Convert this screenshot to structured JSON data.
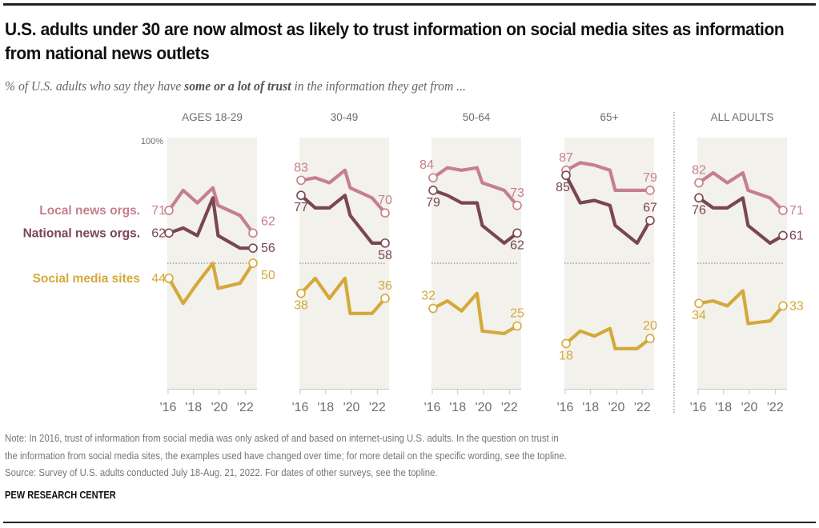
{
  "header": {
    "title": "U.S. adults under 30 are now almost as likely to trust information on social media sites as information from national news outlets",
    "subtitle_pre": "% of U.S. adults who say they have ",
    "subtitle_bold": "some or a lot of trust",
    "subtitle_post": " in the information they get from ..."
  },
  "colors": {
    "local": "#C67F8D",
    "national": "#7A4652",
    "social": "#D4A93A",
    "panel_bg": "#F2F1EC",
    "axis_text": "#6E6E6E"
  },
  "chart_data": {
    "type": "line",
    "title": "U.S. adults under 30 are now almost as likely to trust information on social media sites as information from national news outlets",
    "ylabel": "% with some or a lot of trust",
    "ylim": [
      0,
      100
    ],
    "y_top_label": "100%",
    "reference_line": 50,
    "x_ticks": [
      2016,
      2018,
      2020,
      2022
    ],
    "x_tick_labels": [
      "'16",
      "'18",
      "'20",
      "'22"
    ],
    "x": [
      2016.1,
      2017.2,
      2018.3,
      2019.5,
      2019.9,
      2021.6,
      2022.6
    ],
    "legend": [
      {
        "key": "local",
        "label": "Local news orgs."
      },
      {
        "key": "national",
        "label": "National news orgs."
      },
      {
        "key": "social",
        "label": "Social media sites"
      }
    ],
    "panels": [
      {
        "name": "AGES 18-29",
        "series": [
          {
            "key": "local",
            "name": "Local news orgs.",
            "values": [
              71,
              79,
              74,
              80,
              73,
              69,
              62
            ]
          },
          {
            "key": "national",
            "name": "National news orgs.",
            "values": [
              62,
              64,
              61,
              76,
              61,
              56,
              56
            ]
          },
          {
            "key": "social",
            "name": "Social media sites",
            "values": [
              44,
              34,
              42,
              50,
              40,
              42,
              50
            ]
          }
        ]
      },
      {
        "name": "30-49",
        "series": [
          {
            "key": "local",
            "name": "Local news orgs.",
            "values": [
              83,
              84,
              82,
              87,
              80,
              76,
              70
            ]
          },
          {
            "key": "national",
            "name": "National news orgs.",
            "values": [
              77,
              72,
              72,
              77,
              69,
              58,
              58
            ]
          },
          {
            "key": "social",
            "name": "Social media sites",
            "values": [
              38,
              44,
              36,
              44,
              30,
              30,
              36
            ]
          }
        ]
      },
      {
        "name": "50-64",
        "series": [
          {
            "key": "local",
            "name": "Local news orgs.",
            "values": [
              84,
              88,
              87,
              88,
              82,
              79,
              73
            ]
          },
          {
            "key": "national",
            "name": "National news orgs.",
            "values": [
              79,
              77,
              74,
              74,
              65,
              58,
              62
            ]
          },
          {
            "key": "social",
            "name": "Social media sites",
            "values": [
              32,
              35,
              31,
              38,
              23,
              22,
              25
            ]
          }
        ]
      },
      {
        "name": "65+",
        "series": [
          {
            "key": "local",
            "name": "Local news orgs.",
            "values": [
              87,
              90,
              89,
              87,
              79,
              79,
              79
            ]
          },
          {
            "key": "national",
            "name": "National news orgs.",
            "values": [
              85,
              74,
              75,
              73,
              65,
              58,
              67
            ]
          },
          {
            "key": "social",
            "name": "Social media sites",
            "values": [
              18,
              23,
              21,
              24,
              16,
              16,
              20
            ]
          }
        ]
      },
      {
        "name": "ALL ADULTS",
        "series": [
          {
            "key": "local",
            "name": "Local news orgs.",
            "values": [
              82,
              86,
              82,
              86,
              79,
              76,
              71
            ]
          },
          {
            "key": "national",
            "name": "National news orgs.",
            "values": [
              76,
              72,
              72,
              76,
              65,
              58,
              61
            ]
          },
          {
            "key": "social",
            "name": "Social media sites",
            "values": [
              34,
              35,
              33,
              39,
              26,
              27,
              33
            ]
          }
        ]
      }
    ]
  },
  "footer": {
    "note_line1": "Note: In 2016, trust of information from social media was only asked of and based on internet-using U.S. adults. In the question on trust in",
    "note_line2": "the information from social media sites, the examples used have changed over time; for more detail on the specific wording, see the topline.",
    "source": "Source: Survey of U.S. adults conducted July 18-Aug. 21, 2022. For dates of other surveys, see the topline.",
    "org": "PEW RESEARCH CENTER"
  }
}
